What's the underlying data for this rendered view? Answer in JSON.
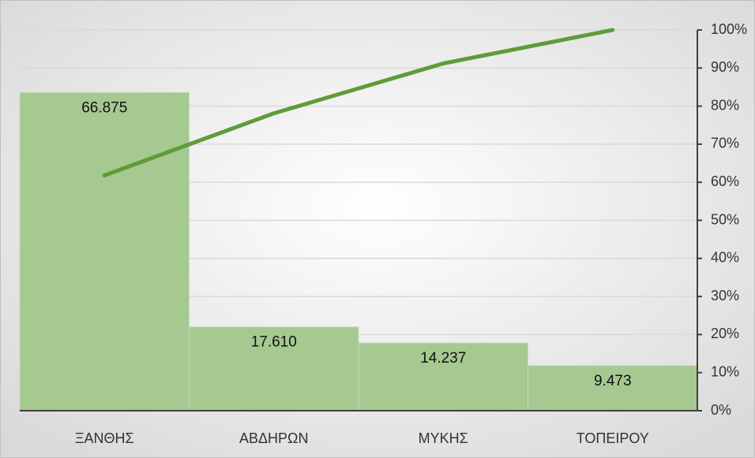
{
  "chart_data": {
    "type": "pareto",
    "categories": [
      "ΞΑΝΘΗΣ",
      "ΑΒΔΗΡΩΝ",
      "ΜΥΚΗΣ",
      "ΤΟΠΕΙΡΟΥ"
    ],
    "series": [
      {
        "type": "bar",
        "color": "#a5c991",
        "values": [
          66875,
          17610,
          14237,
          9473
        ],
        "value_labels": [
          "66.875",
          "17.610",
          "14.237",
          "9.473"
        ]
      },
      {
        "type": "line",
        "axis": "y2",
        "color": "#5e9c3a",
        "values": [
          61.8,
          78.1,
          91.2,
          100
        ]
      }
    ],
    "ylim": [
      0,
      80000
    ],
    "y2lim": [
      0,
      100
    ],
    "y2ticks": [
      {
        "value": 0,
        "label": "0%"
      },
      {
        "value": 10,
        "label": "10%"
      },
      {
        "value": 20,
        "label": "20%"
      },
      {
        "value": 30,
        "label": "30%"
      },
      {
        "value": 40,
        "label": "40%"
      },
      {
        "value": 50,
        "label": "50%"
      },
      {
        "value": 60,
        "label": "60%"
      },
      {
        "value": 70,
        "label": "70%"
      },
      {
        "value": 80,
        "label": "80%"
      },
      {
        "value": 90,
        "label": "90%"
      },
      {
        "value": 100,
        "label": "100%"
      }
    ],
    "grid": true
  }
}
